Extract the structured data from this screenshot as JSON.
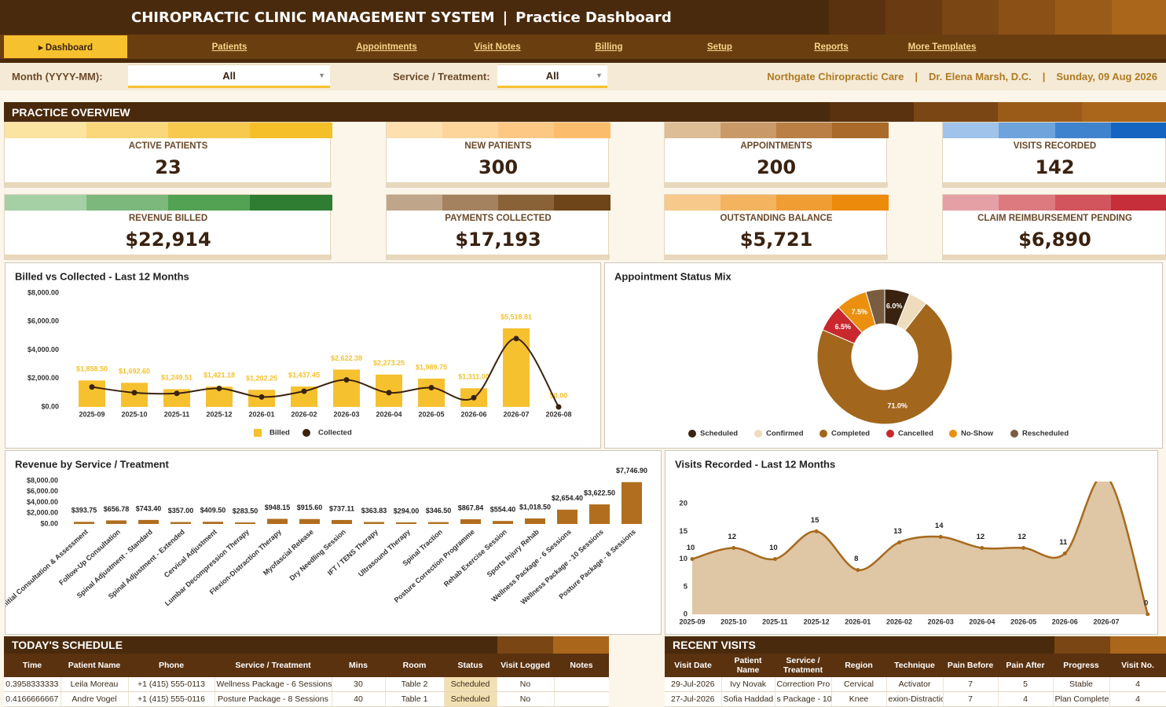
{
  "header": {
    "title": "CHIROPRACTIC CLINIC MANAGEMENT SYSTEM",
    "separator": "|",
    "subtitle": "Practice Dashboard"
  },
  "nav": [
    "▸ Dashboard",
    "Patients",
    "Appointments",
    "Visit Notes",
    "Billing",
    "Setup",
    "Reports",
    "More Templates"
  ],
  "filters": [
    {
      "label": "Month (YYYY-MM):",
      "value": "All"
    },
    {
      "label": "Service / Treatment:",
      "value": "All"
    }
  ],
  "info": [
    "Northgate Chiropractic Care",
    "|",
    "Dr. Elena Marsh, D.C.",
    "|",
    "Sunday, 09 Aug 2026"
  ],
  "overview": {
    "title": "PRACTICE OVERVIEW",
    "kpis": [
      {
        "label": "ACTIVE PATIENTS",
        "value": "23"
      },
      {
        "label": "NEW PATIENTS",
        "value": "300"
      },
      {
        "label": "APPOINTMENTS",
        "value": "200"
      },
      {
        "label": "VISITS RECORDED",
        "value": "142"
      },
      {
        "label": "REVENUE BILLED",
        "value": "$22,914"
      },
      {
        "label": "PAYMENTS COLLECTED",
        "value": "$17,193"
      },
      {
        "label": "OUTSTANDING BALANCE",
        "value": "$5,721"
      },
      {
        "label": "CLAIM REIMBURSEMENT PENDING",
        "value": "$6,890"
      }
    ]
  },
  "chart_data": [
    {
      "type": "bar",
      "title": "Billed vs Collected - Last 12 Months",
      "categories": [
        "2025-09",
        "2025-10",
        "2025-11",
        "2025-12",
        "2026-01",
        "2026-02",
        "2026-03",
        "2026-04",
        "2026-05",
        "2026-06",
        "2026-07",
        "2026-08"
      ],
      "series": [
        {
          "name": "Billed",
          "type": "bar",
          "color": "#f6c12f",
          "values": [
            1858.5,
            1692.6,
            1249.51,
            1421.18,
            1202.25,
            1437.45,
            2622.38,
            2273.25,
            1989.75,
            1311.0,
            5518.81,
            0
          ],
          "value_labels": [
            "$1,858.50",
            "$1,692.60",
            "$1,249.51",
            "$1,421.18",
            "$1,202.25",
            "$1,437.45",
            "$2,622.38",
            "$2,273.25",
            "$1,989.75",
            "$1,311.00",
            "$5,518.81",
            "$0.00"
          ]
        },
        {
          "name": "Collected",
          "type": "line",
          "color": "#3a2210",
          "values": [
            1400,
            1000,
            950,
            1300,
            700,
            1100,
            1900,
            1000,
            1350,
            650,
            4800,
            0
          ]
        }
      ],
      "ylim": [
        0,
        8000
      ],
      "yticks": [
        {
          "value": 0,
          "label": "$0.00"
        },
        {
          "value": 2000,
          "label": "$2,000.00"
        },
        {
          "value": 4000,
          "label": "$4,000.00"
        },
        {
          "value": 6000,
          "label": "$6,000.00"
        },
        {
          "value": 8000,
          "label": "$8,000.00"
        }
      ],
      "legend": "bottom"
    },
    {
      "type": "donut",
      "title": "Appointment Status Mix",
      "categories": [
        "Scheduled",
        "Confirmed",
        "Completed",
        "Cancelled",
        "No-Show",
        "Rescheduled"
      ],
      "values": [
        6.0,
        4.5,
        71.0,
        6.5,
        7.5,
        4.5
      ],
      "value_labels": [
        "6.0%",
        null,
        "71.0%",
        "6.5%",
        "7.5%",
        null
      ],
      "colors": [
        "#3a2210",
        "#efdcbc",
        "#a2661c",
        "#c8282e",
        "#ea900e",
        "#7a5c40"
      ],
      "legend": "bottom"
    },
    {
      "type": "bar",
      "title": "Revenue by Service / Treatment",
      "categories": [
        "Initial Consultation & Assessment",
        "Follow-Up Consultation",
        "Spinal Adjustment - Standard",
        "Spinal Adjustment - Extended",
        "Cervical Adjustment",
        "Lumbar Decompression Therapy",
        "Flexion-Distraction Therapy",
        "Myofascial Release",
        "Dry Needling Session",
        "IFT / TENS Therapy",
        "Ultrasound Therapy",
        "Spinal Traction",
        "Posture Correction Programme",
        "Rehab Exercise Session",
        "Sports Injury Rehab",
        "Wellness Package - 6 Sessions",
        "Wellness Package - 10 Sessions",
        "Posture Package - 8 Sessions"
      ],
      "series": [
        {
          "name": "Revenue",
          "type": "bar",
          "color": "#b06e1e",
          "values": [
            393.75,
            656.78,
            743.4,
            357.0,
            409.5,
            283.5,
            948.15,
            915.6,
            737.11,
            363.83,
            294.0,
            346.5,
            867.84,
            554.4,
            1018.5,
            2654.4,
            3622.5,
            7746.9
          ],
          "value_labels": [
            "$393.75",
            "$656.78",
            "$743.40",
            "$357.00",
            "$409.50",
            "$283.50",
            "$948.15",
            "$915.60",
            "$737.11",
            "$363.83",
            "$294.00",
            "$346.50",
            "$867.84",
            "$554.40",
            "$1,018.50",
            "$2,654.40",
            "$3,622.50",
            "$7,746.90"
          ]
        }
      ],
      "ylim": [
        0,
        8000
      ],
      "yticks": [
        {
          "value": 0,
          "label": "$0.00"
        },
        {
          "value": 2000,
          "label": "$2,000.00"
        },
        {
          "value": 4000,
          "label": "$4,000.00"
        },
        {
          "value": 6000,
          "label": "$6,000.00"
        },
        {
          "value": 8000,
          "label": "$8,000.00"
        }
      ]
    },
    {
      "type": "area",
      "title": "Visits Recorded - Last 12 Months",
      "categories": [
        "2025-09",
        "2025-10",
        "2025-11",
        "2025-12",
        "2026-01",
        "2026-02",
        "2026-03",
        "2026-04",
        "2026-05",
        "2026-06",
        "2026-07",
        null
      ],
      "values": [
        10,
        12,
        10,
        15,
        8,
        13,
        14,
        12,
        12,
        11,
        25,
        0
      ],
      "color": "#a66a1e",
      "fill": "#dfc6a4",
      "ylim": [
        0,
        24
      ],
      "yticks": [
        0,
        5,
        10,
        15,
        20
      ]
    }
  ],
  "schedule": {
    "title": "TODAY'S SCHEDULE",
    "columns": [
      "Time",
      "Patient Name",
      "Phone",
      "Service / Treatment",
      "Mins",
      "Room",
      "Status",
      "Visit Logged",
      "Notes"
    ],
    "rows": [
      [
        "0.3958333333",
        "Leila Moreau",
        "+1 (415) 555-0113",
        "Wellness Package - 6 Sessions",
        "30",
        "Table 2",
        "Scheduled",
        "No"
      ],
      [
        "0.4166666667",
        "Andre Vogel",
        "+1 (415) 555-0116",
        "Posture Package - 8 Sessions",
        "40",
        "Table 1",
        "Scheduled",
        "No"
      ]
    ]
  },
  "recent_visits": {
    "title": "RECENT VISITS",
    "columns": [
      "Visit Date",
      "Patient Name",
      "Service / Treatment",
      "Region",
      "Technique",
      "Pain Before",
      "Pain After",
      "Progress",
      "Visit No."
    ],
    "rows": [
      [
        "29-Jul-2026",
        "Ivy Novak",
        "Correction Pro",
        "Cervical",
        "Activator",
        "7",
        "5",
        "Stable",
        "4"
      ],
      [
        "27-Jul-2026",
        "Sofia Haddad",
        "s Package - 10 S",
        "Knee",
        "exion-Distractio",
        "7",
        "4",
        "Plan Completec",
        "4"
      ]
    ]
  }
}
